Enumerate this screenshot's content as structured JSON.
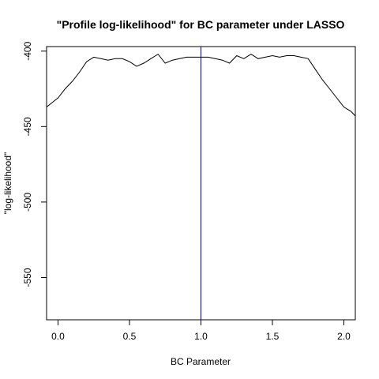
{
  "chart_data": {
    "type": "line",
    "title": "\"Profile log-likelihood\" for BC parameter under LASSO",
    "xlabel": "BC Parameter",
    "ylabel": "\"log-likelihood\"",
    "xlim": [
      -0.08,
      2.08
    ],
    "ylim": [
      -578,
      -397
    ],
    "xticks": [
      0.0,
      0.5,
      1.0,
      1.5,
      2.0
    ],
    "xtick_labels": [
      "0.0",
      "0.5",
      "1.0",
      "1.5",
      "2.0"
    ],
    "yticks": [
      -400,
      -450,
      -500,
      -550
    ],
    "ytick_labels": [
      "-400",
      "-450",
      "-500",
      "-550"
    ],
    "grid": false,
    "series": [
      {
        "color": "#000000",
        "x": [
          -0.08,
          0.0,
          0.05,
          0.1,
          0.15,
          0.2,
          0.25,
          0.3,
          0.35,
          0.4,
          0.45,
          0.5,
          0.55,
          0.6,
          0.65,
          0.7,
          0.75,
          0.8,
          0.85,
          0.9,
          0.95,
          1.0,
          1.05,
          1.1,
          1.15,
          1.2,
          1.25,
          1.3,
          1.35,
          1.4,
          1.45,
          1.5,
          1.55,
          1.6,
          1.65,
          1.7,
          1.75,
          1.8,
          1.85,
          1.9,
          1.95,
          2.0,
          2.05,
          2.08
        ],
        "y": [
          -437,
          -431,
          -425,
          -420,
          -414,
          -407,
          -404,
          -405,
          -406,
          -405,
          -405,
          -407,
          -410,
          -408,
          -405,
          -402,
          -408,
          -406,
          -405,
          -404,
          -404,
          -404,
          -404,
          -405,
          -406,
          -408,
          -403,
          -405,
          -402,
          -405,
          -404,
          -403,
          -404,
          -403,
          -403,
          -404,
          -405,
          -412,
          -419,
          -425,
          -431,
          -437,
          -440,
          -443
        ]
      }
    ],
    "vline": {
      "x": 1.0,
      "color": "#00008b"
    }
  }
}
